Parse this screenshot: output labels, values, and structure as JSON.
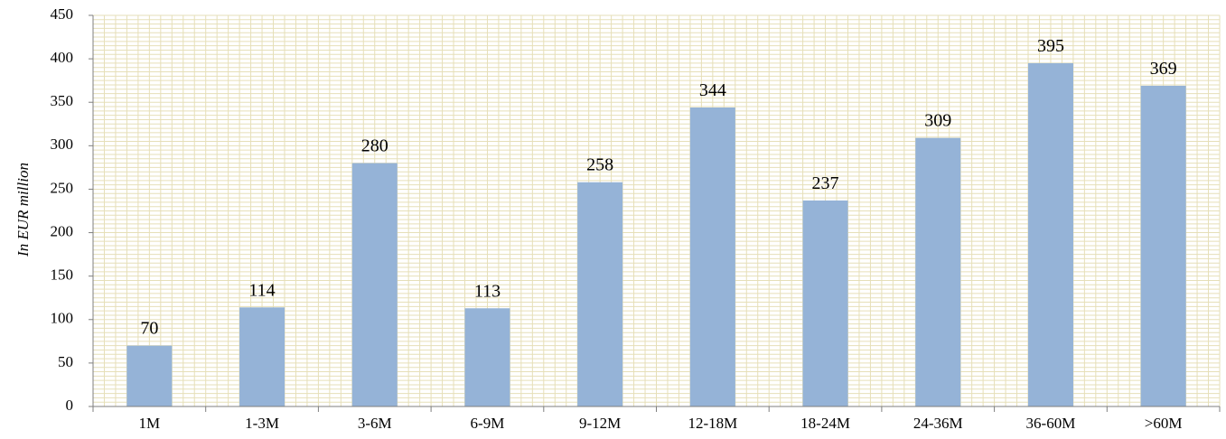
{
  "chart_data": {
    "type": "bar",
    "categories": [
      "1M",
      "1-3M",
      "3-6M",
      "6-9M",
      "9-12M",
      "12-18M",
      "18-24M",
      "24-36M",
      "36-60M",
      ">60M"
    ],
    "values": [
      70,
      114,
      280,
      113,
      258,
      344,
      237,
      309,
      395,
      369
    ],
    "data_labels": [
      "70",
      "114",
      "280",
      "113",
      "258",
      "344",
      "237",
      "309",
      "395",
      "369"
    ],
    "xlabel": "",
    "ylabel": "In EUR million",
    "ylim": [
      0,
      450
    ],
    "yticks": [
      "0",
      "50",
      "100",
      "150",
      "200",
      "250",
      "300",
      "350",
      "400",
      "450"
    ],
    "grid": true,
    "bar_color": "#95b3d7",
    "grid_color": "#e6dfb8"
  }
}
